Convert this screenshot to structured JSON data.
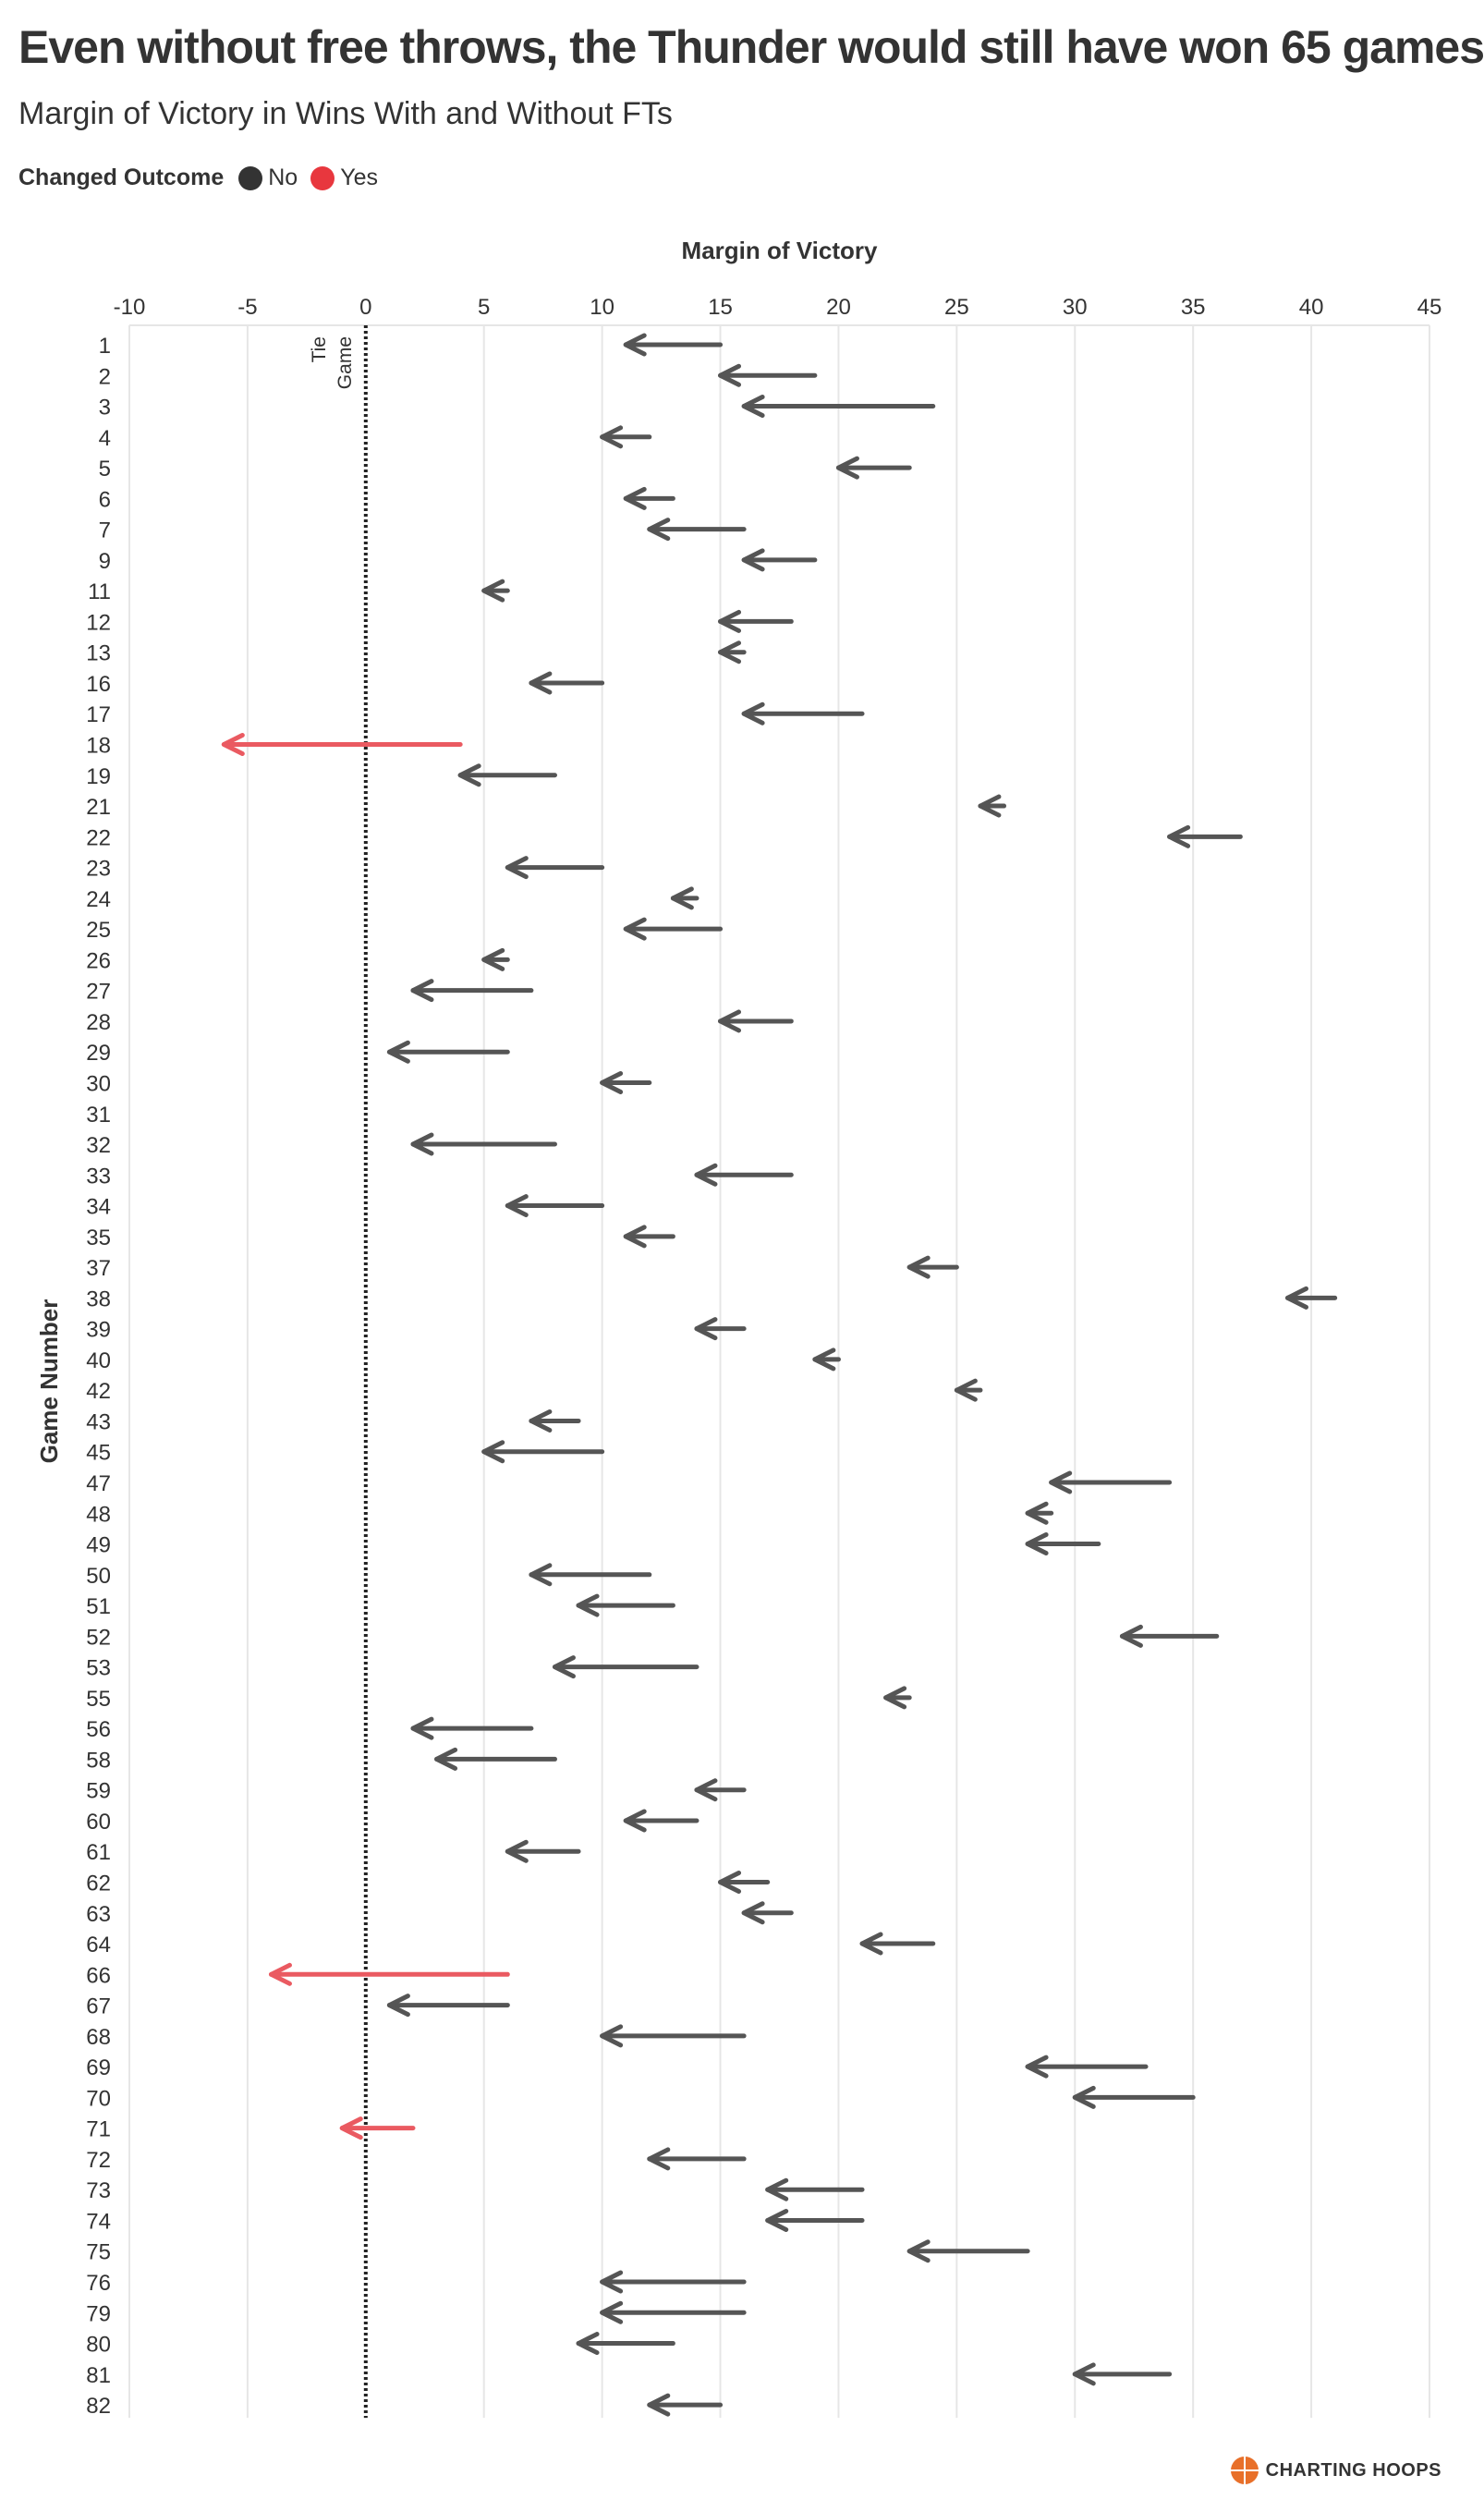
{
  "chart_data": {
    "type": "arrow",
    "title": "Even without free throws, the Thunder would still have won 65 games",
    "subtitle": "Margin of Victory in Wins With and Without FTs",
    "xlabel": "Margin of Victory",
    "ylabel": "Game Number",
    "xlim": [
      -10,
      45
    ],
    "x_ticks": [
      "-10",
      "-5",
      "0",
      "5",
      "10",
      "15",
      "20",
      "25",
      "30",
      "35",
      "40",
      "45"
    ],
    "reference_label_line1": "Tie",
    "reference_label_line2": "Game",
    "legend": {
      "title": "Changed Outcome",
      "items": [
        {
          "label": "No",
          "color": "#333333"
        },
        {
          "label": "Yes",
          "color": "#e8373e"
        }
      ]
    },
    "colors": {
      "unchanged": "#555555",
      "changed": "#ea5a61",
      "grid": "#e6e6e6"
    },
    "games": [
      {
        "game": "1",
        "with_ft": 15,
        "without_ft": 11,
        "changed": false
      },
      {
        "game": "2",
        "with_ft": 19,
        "without_ft": 15,
        "changed": false
      },
      {
        "game": "3",
        "with_ft": 24,
        "without_ft": 16,
        "changed": false
      },
      {
        "game": "4",
        "with_ft": 12,
        "without_ft": 10,
        "changed": false
      },
      {
        "game": "5",
        "with_ft": 23,
        "without_ft": 20,
        "changed": false
      },
      {
        "game": "6",
        "with_ft": 13,
        "without_ft": 11,
        "changed": false
      },
      {
        "game": "7",
        "with_ft": 16,
        "without_ft": 12,
        "changed": false
      },
      {
        "game": "9",
        "with_ft": 19,
        "without_ft": 16,
        "changed": false
      },
      {
        "game": "11",
        "with_ft": 6,
        "without_ft": 5,
        "changed": false
      },
      {
        "game": "12",
        "with_ft": 18,
        "without_ft": 15,
        "changed": false
      },
      {
        "game": "13",
        "with_ft": 16,
        "without_ft": 15,
        "changed": false
      },
      {
        "game": "16",
        "with_ft": 10,
        "without_ft": 7,
        "changed": false
      },
      {
        "game": "17",
        "with_ft": 21,
        "without_ft": 16,
        "changed": false
      },
      {
        "game": "18",
        "with_ft": 4,
        "without_ft": -6,
        "changed": true
      },
      {
        "game": "19",
        "with_ft": 8,
        "without_ft": 4,
        "changed": false
      },
      {
        "game": "21",
        "with_ft": 27,
        "without_ft": 26,
        "changed": false
      },
      {
        "game": "22",
        "with_ft": 37,
        "without_ft": 34,
        "changed": false
      },
      {
        "game": "23",
        "with_ft": 10,
        "without_ft": 6,
        "changed": false
      },
      {
        "game": "24",
        "with_ft": 14,
        "without_ft": 13,
        "changed": false
      },
      {
        "game": "25",
        "with_ft": 15,
        "without_ft": 11,
        "changed": false
      },
      {
        "game": "26",
        "with_ft": 6,
        "without_ft": 5,
        "changed": false
      },
      {
        "game": "27",
        "with_ft": 7,
        "without_ft": 2,
        "changed": false
      },
      {
        "game": "28",
        "with_ft": 18,
        "without_ft": 15,
        "changed": false
      },
      {
        "game": "29",
        "with_ft": 6,
        "without_ft": 1,
        "changed": false
      },
      {
        "game": "30",
        "with_ft": 12,
        "without_ft": 10,
        "changed": false
      },
      {
        "game": "31",
        "with_ft": null,
        "without_ft": null,
        "changed": false
      },
      {
        "game": "32",
        "with_ft": 8,
        "without_ft": 2,
        "changed": false
      },
      {
        "game": "33",
        "with_ft": 18,
        "without_ft": 14,
        "changed": false
      },
      {
        "game": "34",
        "with_ft": 10,
        "without_ft": 6,
        "changed": false
      },
      {
        "game": "35",
        "with_ft": 13,
        "without_ft": 11,
        "changed": false
      },
      {
        "game": "37",
        "with_ft": 25,
        "without_ft": 23,
        "changed": false
      },
      {
        "game": "38",
        "with_ft": 41,
        "without_ft": 39,
        "changed": false
      },
      {
        "game": "39",
        "with_ft": 16,
        "without_ft": 14,
        "changed": false
      },
      {
        "game": "40",
        "with_ft": 20,
        "without_ft": 19,
        "changed": false
      },
      {
        "game": "42",
        "with_ft": 26,
        "without_ft": 25,
        "changed": false
      },
      {
        "game": "43",
        "with_ft": 9,
        "without_ft": 7,
        "changed": false
      },
      {
        "game": "45",
        "with_ft": 10,
        "without_ft": 5,
        "changed": false
      },
      {
        "game": "47",
        "with_ft": 34,
        "without_ft": 29,
        "changed": false
      },
      {
        "game": "48",
        "with_ft": 29,
        "without_ft": 28,
        "changed": false
      },
      {
        "game": "49",
        "with_ft": 31,
        "without_ft": 28,
        "changed": false
      },
      {
        "game": "50",
        "with_ft": 12,
        "without_ft": 7,
        "changed": false
      },
      {
        "game": "51",
        "with_ft": 13,
        "without_ft": 9,
        "changed": false
      },
      {
        "game": "52",
        "with_ft": 36,
        "without_ft": 32,
        "changed": false
      },
      {
        "game": "53",
        "with_ft": 14,
        "without_ft": 8,
        "changed": false
      },
      {
        "game": "55",
        "with_ft": 23,
        "without_ft": 22,
        "changed": false
      },
      {
        "game": "56",
        "with_ft": 7,
        "without_ft": 2,
        "changed": false
      },
      {
        "game": "58",
        "with_ft": 8,
        "without_ft": 3,
        "changed": false
      },
      {
        "game": "59",
        "with_ft": 16,
        "without_ft": 14,
        "changed": false
      },
      {
        "game": "60",
        "with_ft": 14,
        "without_ft": 11,
        "changed": false
      },
      {
        "game": "61",
        "with_ft": 9,
        "without_ft": 6,
        "changed": false
      },
      {
        "game": "62",
        "with_ft": 17,
        "without_ft": 15,
        "changed": false
      },
      {
        "game": "63",
        "with_ft": 18,
        "without_ft": 16,
        "changed": false
      },
      {
        "game": "64",
        "with_ft": 24,
        "without_ft": 21,
        "changed": false
      },
      {
        "game": "66",
        "with_ft": 6,
        "without_ft": -4,
        "changed": true
      },
      {
        "game": "67",
        "with_ft": 6,
        "without_ft": 1,
        "changed": false
      },
      {
        "game": "68",
        "with_ft": 16,
        "without_ft": 10,
        "changed": false
      },
      {
        "game": "69",
        "with_ft": 33,
        "without_ft": 28,
        "changed": false
      },
      {
        "game": "70",
        "with_ft": 35,
        "without_ft": 30,
        "changed": false
      },
      {
        "game": "71",
        "with_ft": 2,
        "without_ft": -1,
        "changed": true
      },
      {
        "game": "72",
        "with_ft": 16,
        "without_ft": 12,
        "changed": false
      },
      {
        "game": "73",
        "with_ft": 21,
        "without_ft": 17,
        "changed": false
      },
      {
        "game": "74",
        "with_ft": 21,
        "without_ft": 17,
        "changed": false
      },
      {
        "game": "75",
        "with_ft": 28,
        "without_ft": 23,
        "changed": false
      },
      {
        "game": "76",
        "with_ft": 16,
        "without_ft": 10,
        "changed": false
      },
      {
        "game": "79",
        "with_ft": 16,
        "without_ft": 10,
        "changed": false
      },
      {
        "game": "80",
        "with_ft": 13,
        "without_ft": 9,
        "changed": false
      },
      {
        "game": "81",
        "with_ft": 34,
        "without_ft": 30,
        "changed": false
      },
      {
        "game": "82",
        "with_ft": 15,
        "without_ft": 12,
        "changed": false
      }
    ]
  },
  "branding": {
    "logo_text": "CHARTING HOOPS",
    "logo_icon": "basketball-icon"
  }
}
